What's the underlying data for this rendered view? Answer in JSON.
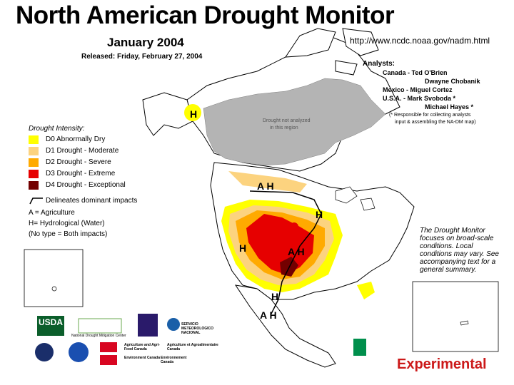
{
  "title": "North American Drought Monitor",
  "subtitle": "January 2004",
  "released": "Released:  Friday, February 27, 2004",
  "url": "http://www.ncdc.noaa.gov/nadm.html",
  "analysts": {
    "heading": "Analysts:",
    "lines": [
      "Canada - Ted O'Brien",
      "Dwayne Chobanik",
      "Mexico -  Miguel Cortez",
      "U.S.A. -  Mark Svoboda *",
      "Michael Hayes *"
    ],
    "note_1": "(* Responsible for collecting analysts",
    "note_2": "input & assembling the NA-DM map)"
  },
  "legend": {
    "title": "Drought Intensity:",
    "items": [
      {
        "label": "D0 Abnormally Dry",
        "color": "#ffff00"
      },
      {
        "label": "D1 Drought - Moderate",
        "color": "#fcd37f"
      },
      {
        "label": "D2 Drought - Severe",
        "color": "#ffaa00"
      },
      {
        "label": "D3 Drought - Extreme",
        "color": "#e60000"
      },
      {
        "label": "D4 Drought - Exceptional",
        "color": "#730000"
      }
    ],
    "delineates": "Delineates dominant impacts",
    "impact_a": "A = Agriculture",
    "impact_h": "H= Hydrological (Water)",
    "impact_both": "(No type = Both impacts)"
  },
  "map_labels": {
    "not_analyzed_1": "Drought not analyzed",
    "not_analyzed_2": "in this region",
    "h1": "H",
    "ah1": "A H",
    "h2": "H",
    "h3": "H",
    "ah2": "A H",
    "h4": "H",
    "ah3": "A H"
  },
  "summary_note": "The Drought Monitor focuses on broad-scale conditions.  Local conditions may vary.  See accompanying text for a general summary.",
  "experimental": "Experimental",
  "logos": {
    "usda": "USDA",
    "ndmc": "National Drought Mitigation Center",
    "agriculture_en": "Agriculture and Agri-Food Canada",
    "agriculture_fr": "Agriculture et Agroalimentaire Canada",
    "environment_en": "Environment Canada",
    "environment_fr": "Environnement Canada",
    "smn": "SERVICIO METEOROLOGICO NACIONAL"
  },
  "colors": {
    "not_analyzed": "#b4b4b4",
    "land": "#ffffff",
    "boundary": "#000000"
  }
}
